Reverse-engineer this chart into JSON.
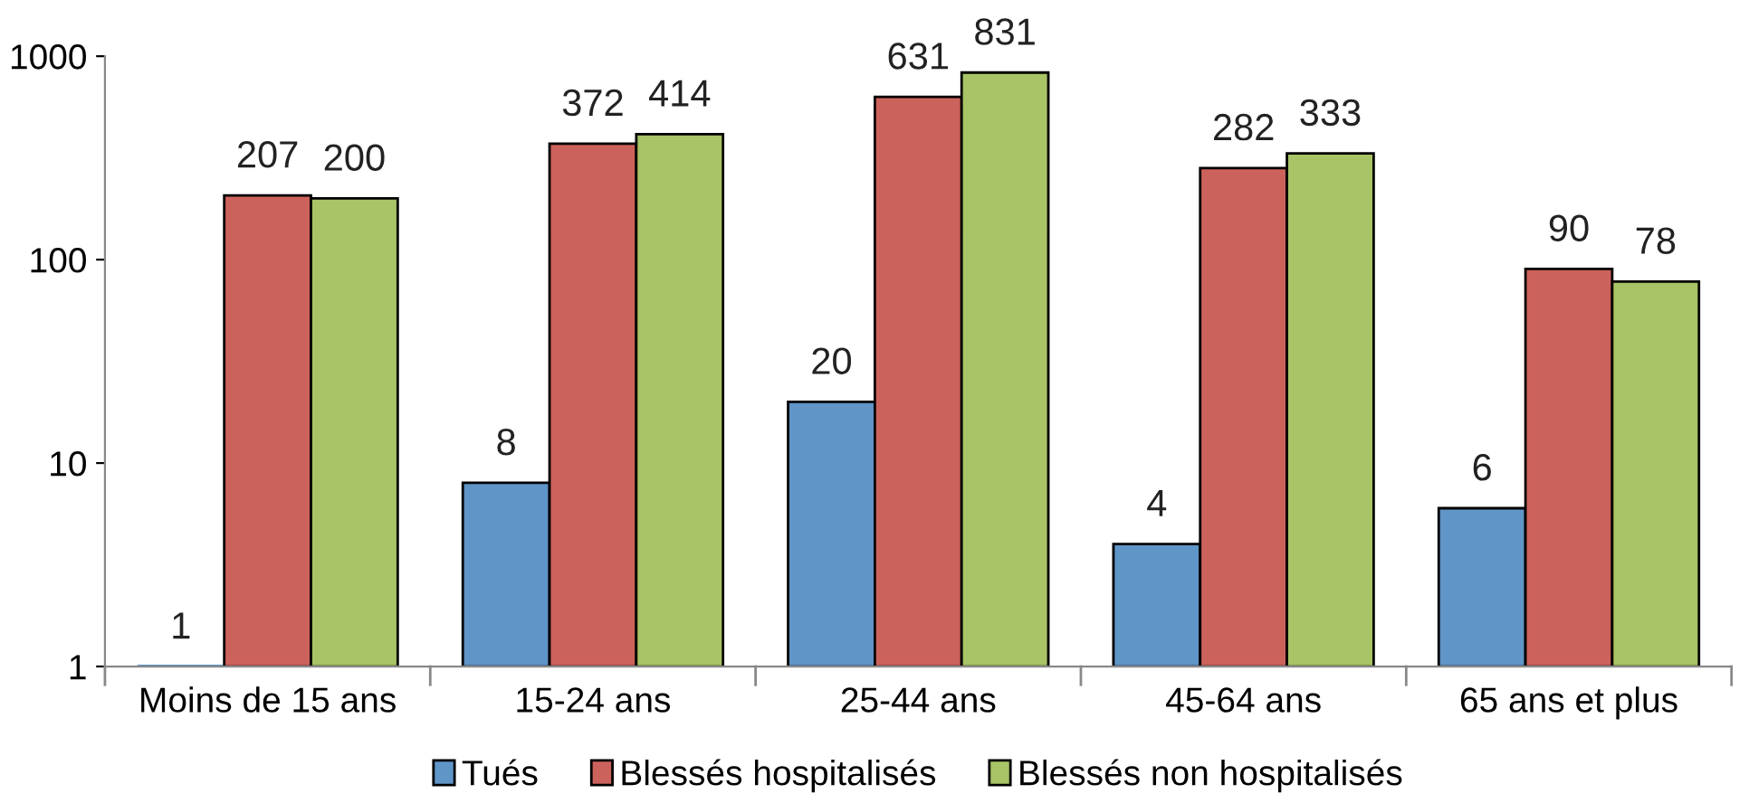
{
  "chart_data": {
    "type": "bar",
    "categories": [
      "Moins de 15 ans",
      "15-24 ans",
      "25-44 ans",
      "45-64 ans",
      "65 ans et plus"
    ],
    "series": [
      {
        "name": "Tués",
        "color": "#5f95c7",
        "values": [
          1,
          8,
          20,
          4,
          6
        ]
      },
      {
        "name": "Blessés hospitalisés",
        "color": "#cc625c",
        "values": [
          207,
          372,
          631,
          282,
          90
        ]
      },
      {
        "name": "Blessés non hospitalisés",
        "color": "#a8c466",
        "values": [
          200,
          414,
          831,
          333,
          78
        ]
      }
    ],
    "log": true,
    "ylim": [
      1,
      1000
    ],
    "yticks": [
      1,
      10,
      100,
      1000
    ],
    "data_labels": true,
    "legend": "bottom",
    "grid": false
  }
}
